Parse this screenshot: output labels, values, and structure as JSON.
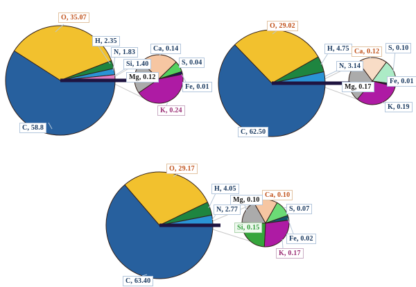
{
  "figure": {
    "background": "#ffffff",
    "description": "Three pie-of-pie charts of elemental composition (%)"
  },
  "chart_data": [
    {
      "type": "pie",
      "variant": "pie-of-pie",
      "legend": "none",
      "main_series": [
        {
          "el": "O",
          "value": 35.07,
          "label": "O, 35.07",
          "color": "#F2C12E",
          "text_color": "#C05018",
          "box_border": "#E2C3A2"
        },
        {
          "el": "H",
          "value": 2.35,
          "label": "H, 2.35",
          "color": "#1E8540",
          "text_color": "#17375E",
          "box_border": "#B3C6DC"
        },
        {
          "el": "N",
          "value": 1.83,
          "label": "N, 1.83",
          "color": "#2A93D5",
          "text_color": "#17375E",
          "box_border": "#B3C6DC"
        },
        {
          "el": "Si",
          "value": 1.4,
          "label": "Si, 1.40",
          "color": "#E37DC2",
          "text_color": "#17375E",
          "box_border": "#B3C6DC"
        },
        {
          "el": "C",
          "value": 58.8,
          "label": "C, 58.8",
          "color": "#27609E",
          "text_color": "#17375E",
          "box_border": "#B3C6DC"
        }
      ],
      "small_series": [
        {
          "el": "Ca",
          "value": 0.14,
          "label": "Ca, 0.14",
          "color": "#F6C6A2",
          "text_color": "#17375E",
          "box_border": "#B3C6DC"
        },
        {
          "el": "S",
          "value": 0.04,
          "label": "S, 0.04",
          "color": "#53D05E",
          "text_color": "#17375E",
          "box_border": "#B3C6DC"
        },
        {
          "el": "Fe",
          "value": 0.01,
          "label": "Fe, 0.01",
          "color": "#18175C",
          "text_color": "#17375E",
          "box_border": "#B3C6DC"
        },
        {
          "el": "K",
          "value": 0.24,
          "label": "K, 0.24",
          "color": "#AE1BA4",
          "text_color": "#9A2D74",
          "box_border": "#C9ADC4"
        },
        {
          "el": "Mg",
          "value": 0.12,
          "label": "Mg, 0.12",
          "color": "#ABABAB",
          "text_color": "#141414",
          "box_border": "#B3C6DC"
        }
      ],
      "other_color": "#1F1440"
    },
    {
      "type": "pie",
      "variant": "pie-of-pie",
      "legend": "none",
      "main_series": [
        {
          "el": "O",
          "value": 29.02,
          "label": "O, 29.02",
          "color": "#F2C12E",
          "text_color": "#C05018",
          "box_border": "#E2C3A2"
        },
        {
          "el": "H",
          "value": 4.75,
          "label": "H, 4.75",
          "color": "#1E8540",
          "text_color": "#17375E",
          "box_border": "#B3C6DC"
        },
        {
          "el": "N",
          "value": 3.14,
          "label": "N, 3.14",
          "color": "#2A93D5",
          "text_color": "#17375E",
          "box_border": "#B3C6DC"
        },
        {
          "el": "C",
          "value": 62.5,
          "label": "C, 62.50",
          "color": "#27609E",
          "text_color": "#17375E",
          "box_border": "#B3C6DC"
        }
      ],
      "small_series": [
        {
          "el": "Ca",
          "value": 0.12,
          "label": "Ca, 0.12",
          "color": "#F8DCC6",
          "text_color": "#C05018",
          "box_border": "#E2C3A2"
        },
        {
          "el": "S",
          "value": 0.1,
          "label": "S, 0.10",
          "color": "#ACEBC6",
          "text_color": "#17375E",
          "box_border": "#B3C6DC"
        },
        {
          "el": "Fe",
          "value": 0.01,
          "label": "Fe, 0.01",
          "color": "#18175C",
          "text_color": "#17375E",
          "box_border": "#B3C6DC"
        },
        {
          "el": "K",
          "value": 0.19,
          "label": "K, 0.19",
          "color": "#AE1BA4",
          "text_color": "#17375E",
          "box_border": "#B3C6DC"
        },
        {
          "el": "Mg",
          "value": 0.17,
          "label": "Mg, 0.17",
          "color": "#ABABAB",
          "text_color": "#141414",
          "box_border": "#B3C6DC"
        }
      ],
      "other_color": "#1F1440"
    },
    {
      "type": "pie",
      "variant": "pie-of-pie",
      "legend": "none",
      "main_series": [
        {
          "el": "O",
          "value": 29.17,
          "label": "O, 29.17",
          "color": "#F2C12E",
          "text_color": "#C05018",
          "box_border": "#E2C3A2"
        },
        {
          "el": "H",
          "value": 4.05,
          "label": "H, 4.05",
          "color": "#1E8540",
          "text_color": "#17375E",
          "box_border": "#B3C6DC"
        },
        {
          "el": "N",
          "value": 2.77,
          "label": "N, 2.77",
          "color": "#2A93D5",
          "text_color": "#17375E",
          "box_border": "#B3C6DC"
        },
        {
          "el": "C",
          "value": 63.4,
          "label": "C, 63.40",
          "color": "#27609E",
          "text_color": "#17375E",
          "box_border": "#B3C6DC"
        }
      ],
      "small_series": [
        {
          "el": "Ca",
          "value": 0.1,
          "label": "Ca, 0.10",
          "color": "#F6C6A2",
          "text_color": "#C05018",
          "box_border": "#E2C3A2"
        },
        {
          "el": "S",
          "value": 0.07,
          "label": "S, 0.07",
          "color": "#6BDB76",
          "text_color": "#17375E",
          "box_border": "#B3C6DC"
        },
        {
          "el": "Fe",
          "value": 0.02,
          "label": "Fe, 0.02",
          "color": "#14576B",
          "text_color": "#17375E",
          "box_border": "#B3C6DC"
        },
        {
          "el": "K",
          "value": 0.17,
          "label": "K, 0.17",
          "color": "#AE1BA4",
          "text_color": "#9A2D74",
          "box_border": "#C9ADC4"
        },
        {
          "el": "Si",
          "value": 0.15,
          "label": "Si, 0.15",
          "color": "#35A53C",
          "text_color": "#2E9D38",
          "box_border": "#AED4AE",
          "box_bg": "#EFF9EF"
        },
        {
          "el": "Mg",
          "value": 0.1,
          "label": "Mg, 0.10",
          "color": "#ABABAB",
          "text_color": "#141414",
          "box_border": "#B3C6DC"
        }
      ],
      "other_color": "#1F1440"
    }
  ]
}
